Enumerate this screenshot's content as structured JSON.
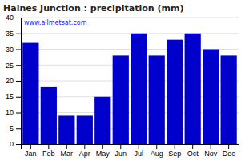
{
  "chart_data": {
    "type": "bar",
    "title": "Haines Junction : precipitation (mm)",
    "categories": [
      "Jan",
      "Feb",
      "Mar",
      "Apr",
      "May",
      "Jun",
      "Jul",
      "Aug",
      "Sep",
      "Oct",
      "Nov",
      "Dec"
    ],
    "values": [
      32,
      18,
      9,
      9,
      15,
      28,
      35,
      28,
      33,
      35,
      30,
      28
    ],
    "color": "#0000CC",
    "ylim": [
      0,
      40
    ],
    "yticks": [
      0,
      5,
      10,
      15,
      20,
      25,
      30,
      35,
      40
    ],
    "grid": true,
    "annotations": [
      "www.allmetsat.com"
    ]
  }
}
